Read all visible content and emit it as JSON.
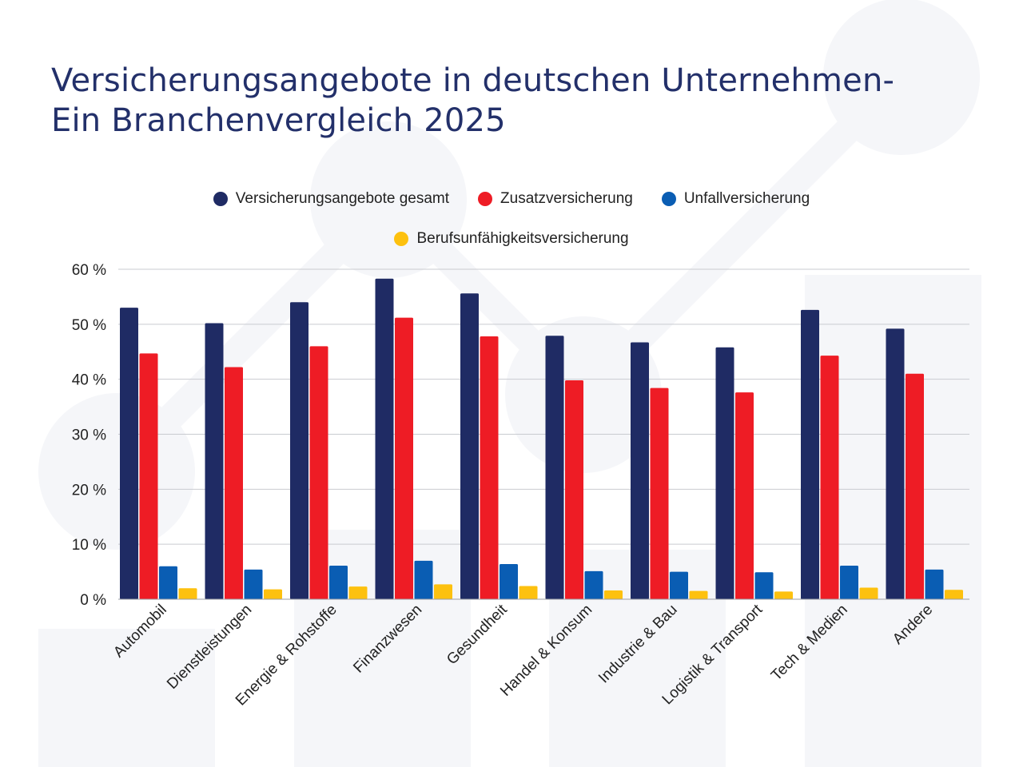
{
  "title": {
    "line1": "Versicherungsangebote in deutschen Unternehmen-",
    "line2": "Ein Branchenvergleich 2025"
  },
  "chart_data": {
    "type": "bar",
    "title": "Versicherungsangebote in deutschen Unternehmen- Ein Branchenvergleich 2025",
    "categories": [
      "Automobil",
      "Dienstleistungen",
      "Energie & Rohstoffe",
      "Finanzwesen",
      "Gesundheit",
      "Handel & Konsum",
      "Industrie & Bau",
      "Logistik & Transport",
      "Tech & Medien",
      "Andere"
    ],
    "series": [
      {
        "name": "Versicherungsangebote gesamt",
        "color": "#1f2b64",
        "values": [
          53.0,
          50.2,
          54.0,
          58.3,
          55.6,
          47.9,
          46.7,
          45.8,
          52.6,
          49.2
        ]
      },
      {
        "name": "Zusatzversicherung",
        "color": "#ee1c25",
        "values": [
          44.7,
          42.2,
          46.0,
          51.2,
          47.8,
          39.8,
          38.4,
          37.6,
          44.3,
          41.0
        ]
      },
      {
        "name": "Unfallversicherung",
        "color": "#0a5db3",
        "values": [
          6.0,
          5.4,
          6.1,
          7.0,
          6.4,
          5.1,
          5.0,
          4.9,
          6.1,
          5.4
        ]
      },
      {
        "name": "Berufsunfähigkeitsversicherung",
        "color": "#fdc10f",
        "values": [
          2.0,
          1.8,
          2.3,
          2.7,
          2.4,
          1.6,
          1.5,
          1.4,
          2.1,
          1.7
        ]
      }
    ],
    "yticks": [
      "0 %",
      "10 %",
      "20 %",
      "30 %",
      "40 %",
      "50 %",
      "60 %"
    ],
    "ylim": [
      0,
      60
    ],
    "xlabel": "",
    "ylabel": "",
    "grid": true,
    "legend": "top-center"
  }
}
